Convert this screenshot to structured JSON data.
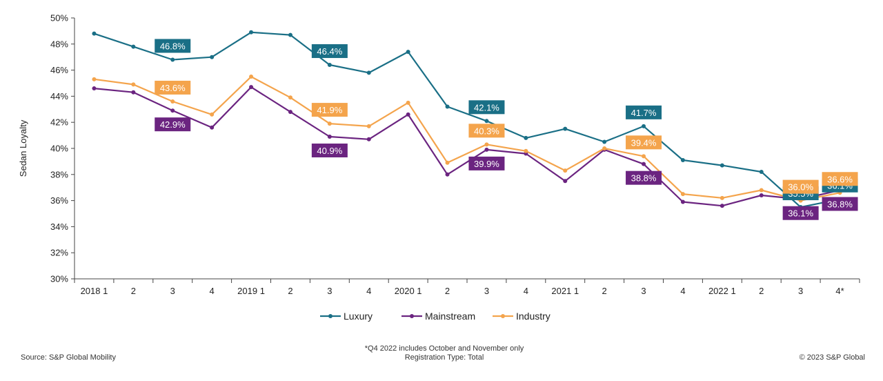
{
  "chart_data": {
    "type": "line",
    "ylabel": "Sedan Loyalty",
    "ylim": [
      30,
      50
    ],
    "yticks": [
      "30%",
      "32%",
      "34%",
      "36%",
      "38%",
      "40%",
      "42%",
      "44%",
      "46%",
      "48%",
      "50%"
    ],
    "categories": [
      "2018 1",
      "2",
      "3",
      "4",
      "2019 1",
      "2",
      "3",
      "4",
      "2020 1",
      "2",
      "3",
      "4",
      "2021 1",
      "2",
      "3",
      "4",
      "2022 1",
      "2",
      "3",
      "4*"
    ],
    "series": [
      {
        "name": "Luxury",
        "color": "#1a6f86",
        "values": [
          48.8,
          47.8,
          46.8,
          47.0,
          48.9,
          48.7,
          46.4,
          45.8,
          47.4,
          43.2,
          42.1,
          40.8,
          41.5,
          40.5,
          41.7,
          39.1,
          38.7,
          38.2,
          35.5,
          36.1
        ],
        "labels": [
          {
            "index": 2,
            "text": "46.8%",
            "pos": "above"
          },
          {
            "index": 6,
            "text": "46.4%",
            "pos": "above"
          },
          {
            "index": 10,
            "text": "42.1%",
            "pos": "above"
          },
          {
            "index": 14,
            "text": "41.7%",
            "pos": "above"
          },
          {
            "index": 18,
            "text": "35.5%",
            "pos": "above"
          },
          {
            "index": 19,
            "text": "36.1%",
            "pos": "above"
          }
        ]
      },
      {
        "name": "Mainstream",
        "color": "#6b2480",
        "values": [
          44.6,
          44.3,
          42.9,
          41.6,
          44.7,
          42.8,
          40.9,
          40.7,
          42.6,
          38.0,
          39.9,
          39.6,
          37.5,
          39.9,
          38.8,
          35.9,
          35.6,
          36.4,
          36.1,
          36.8
        ],
        "labels": [
          {
            "index": 2,
            "text": "42.9%",
            "pos": "below"
          },
          {
            "index": 6,
            "text": "40.9%",
            "pos": "below"
          },
          {
            "index": 10,
            "text": "39.9%",
            "pos": "below"
          },
          {
            "index": 14,
            "text": "38.8%",
            "pos": "below"
          },
          {
            "index": 18,
            "text": "36.1%",
            "pos": "below"
          },
          {
            "index": 19,
            "text": "36.8%",
            "pos": "below"
          }
        ]
      },
      {
        "name": "Industry",
        "color": "#f4a44c",
        "values": [
          45.3,
          44.9,
          43.6,
          42.6,
          45.5,
          43.9,
          41.9,
          41.7,
          43.5,
          38.9,
          40.3,
          39.8,
          38.3,
          40.0,
          39.4,
          36.5,
          36.2,
          36.8,
          36.0,
          36.6
        ],
        "labels": [
          {
            "index": 2,
            "text": "43.6%",
            "pos": "above"
          },
          {
            "index": 6,
            "text": "41.9%",
            "pos": "above"
          },
          {
            "index": 10,
            "text": "40.3%",
            "pos": "above"
          },
          {
            "index": 14,
            "text": "39.4%",
            "pos": "above"
          },
          {
            "index": 18,
            "text": "36.0%",
            "pos": "above"
          },
          {
            "index": 19,
            "text": "36.6%",
            "pos": "above"
          }
        ]
      }
    ],
    "legend_position": "bottom-center",
    "grid": false
  },
  "footer": {
    "source": "Source: S&P Global Mobility",
    "note_line1": "*Q4 2022 includes October and November only",
    "note_line2": "Registration Type: Total",
    "copyright": "© 2023 S&P Global"
  }
}
